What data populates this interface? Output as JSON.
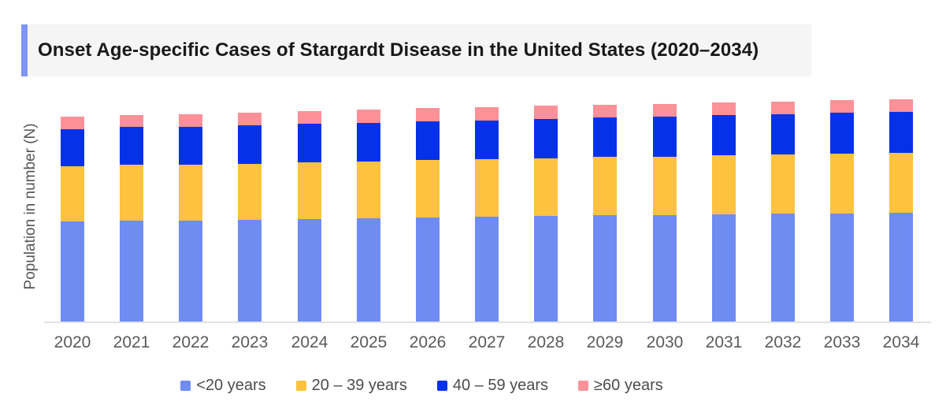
{
  "chart_data": {
    "type": "bar",
    "stacked": true,
    "title": "Onset Age-specific Cases of Stargardt Disease in the United States (2020–2034)",
    "ylabel": "Population in number (N)",
    "xlabel": "",
    "categories": [
      "2020",
      "2021",
      "2022",
      "2023",
      "2024",
      "2025",
      "2026",
      "2027",
      "2028",
      "2029",
      "2030",
      "2031",
      "2032",
      "2033",
      "2034"
    ],
    "series": [
      {
        "name": "<20 years",
        "color": "#6f8cf2",
        "values": [
          127,
          128,
          128,
          129,
          130,
          131,
          132,
          133,
          134,
          135,
          135,
          136,
          137,
          137,
          138
        ]
      },
      {
        "name": "20 – 39 years",
        "color": "#fdc23e",
        "values": [
          70,
          71,
          71,
          71,
          72,
          72,
          73,
          73,
          73,
          74,
          74,
          75,
          75,
          76,
          76
        ]
      },
      {
        "name": "40 – 59 years",
        "color": "#0532e9",
        "values": [
          47,
          48,
          48,
          49,
          49,
          49,
          49,
          49,
          50,
          50,
          51,
          51,
          51,
          52,
          52
        ]
      },
      {
        "name": "≥60 years",
        "color": "#fc9198",
        "values": [
          16,
          15,
          16,
          16,
          16,
          17,
          17,
          17,
          17,
          16,
          16,
          16,
          16,
          16,
          16
        ]
      }
    ],
    "value_units": "relative units (y-axis shows no numeric tick labels)",
    "ylim": [
      0,
      300
    ],
    "grid": false,
    "legend_position": "bottom"
  },
  "colors": {
    "accent_bar": "#7d96f2",
    "title_background": "#f5f5f6",
    "axis_line": "#e1e1e4",
    "tick_text": "#5a5a5a",
    "legend_text": "#4c4c4c"
  }
}
